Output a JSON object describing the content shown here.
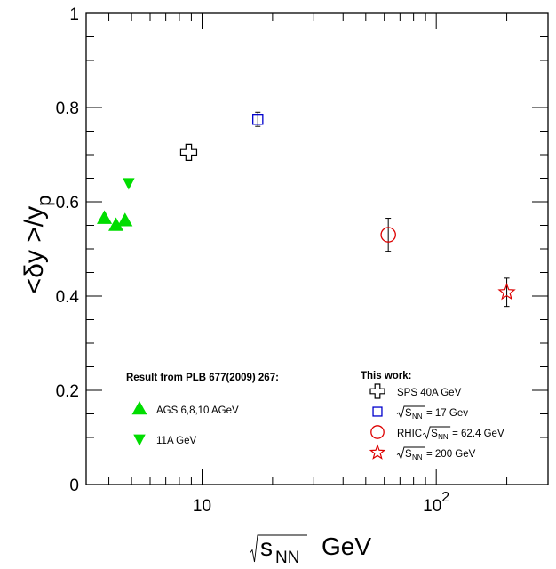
{
  "chart_data": {
    "type": "scatter",
    "xlabel": "√s_NN  GeV",
    "ylabel": "<δy >/y_p",
    "xscale": "log",
    "xlim": [
      3.2,
      300
    ],
    "ylim": [
      0,
      1
    ],
    "x_tick_labels": [
      {
        "x": 10,
        "label": "10"
      },
      {
        "x": 100,
        "label": "10",
        "sup": "2"
      }
    ],
    "y_tick_labels": [
      {
        "y": 0,
        "label": "0"
      },
      {
        "y": 0.2,
        "label": "0.2"
      },
      {
        "y": 0.4,
        "label": "0.4"
      },
      {
        "y": 0.6,
        "label": "0.6"
      },
      {
        "y": 0.8,
        "label": "0.8"
      },
      {
        "y": 1,
        "label": "1"
      }
    ],
    "series": [
      {
        "key": "ags",
        "marker": "triangle-up",
        "color": "#00dd00",
        "points": [
          {
            "x": 3.83,
            "y": 0.565
          },
          {
            "x": 4.29,
            "y": 0.55
          },
          {
            "x": 4.69,
            "y": 0.56
          }
        ]
      },
      {
        "key": "ags11",
        "marker": "triangle-down",
        "color": "#00dd00",
        "points": [
          {
            "x": 4.86,
            "y": 0.64
          }
        ]
      },
      {
        "key": "sps40",
        "marker": "open-cross",
        "color": "#000000",
        "points": [
          {
            "x": 8.77,
            "y": 0.705
          }
        ]
      },
      {
        "key": "sps17",
        "marker": "open-square",
        "color": "#0000cc",
        "points": [
          {
            "x": 17.3,
            "y": 0.775,
            "err": 0.015
          }
        ]
      },
      {
        "key": "rhic62",
        "marker": "open-circle",
        "color": "#dd0000",
        "points": [
          {
            "x": 62.4,
            "y": 0.53,
            "err": 0.035
          }
        ]
      },
      {
        "key": "rhic200",
        "marker": "open-star",
        "color": "#dd0000",
        "points": [
          {
            "x": 200,
            "y": 0.408,
            "err": 0.03
          }
        ]
      }
    ],
    "legend_left": {
      "header": "Result from PLB 677(2009) 267:",
      "entries": [
        {
          "marker": "triangle-up",
          "color": "#00dd00",
          "text": "AGS 6,8,10 AGeV"
        },
        {
          "marker": "triangle-down",
          "color": "#00dd00",
          "text": "11A GeV"
        }
      ]
    },
    "legend_right": {
      "header": "This work:",
      "entries": [
        {
          "marker": "open-cross",
          "color": "#000000",
          "prefix": "SPS  40A GeV"
        },
        {
          "marker": "open-square",
          "color": "#0000cc",
          "prefix": "",
          "sqrt_sub": "NN",
          "suffix": "= 17 Gev"
        },
        {
          "marker": "open-circle",
          "color": "#dd0000",
          "prefix": "RHIC",
          "sqrt_sub": "NN",
          "suffix": "=  62.4 GeV"
        },
        {
          "marker": "open-star",
          "color": "#dd0000",
          "prefix": "",
          "sqrt_sub": "NN",
          "suffix": "=  200 GeV"
        }
      ]
    }
  }
}
